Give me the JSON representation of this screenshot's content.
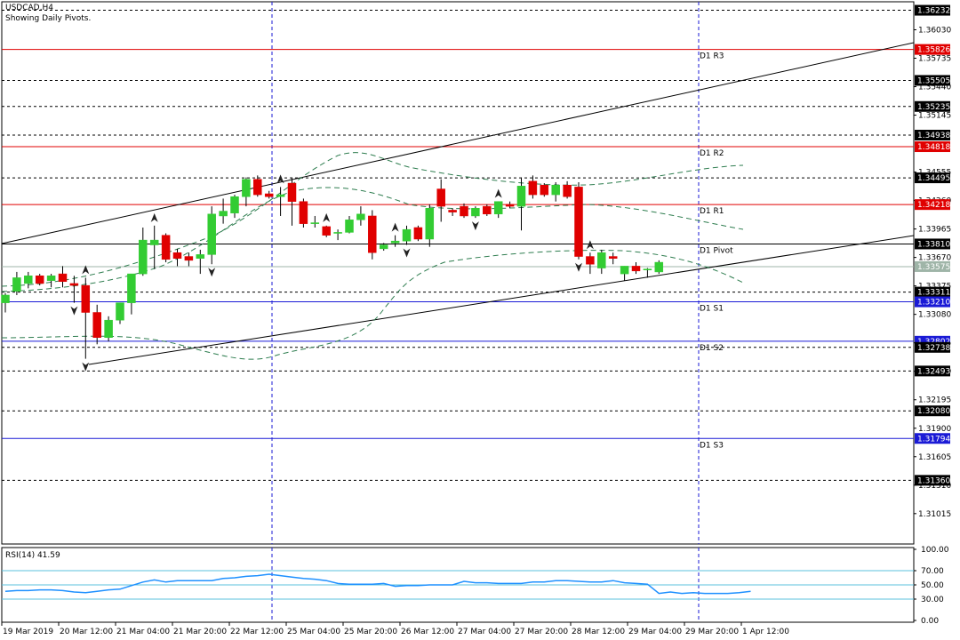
{
  "header": {
    "symbol": "USDCAD,H4",
    "subtitle": "Showing Daily Pivots."
  },
  "rsi": {
    "label": "RSI(14) 41.59",
    "ticks": [
      "100.00",
      "70.00",
      "50.00",
      "30.00",
      "0.00"
    ],
    "values": [
      41,
      42,
      42,
      43,
      43,
      42,
      40,
      39,
      41,
      43,
      44,
      49,
      54,
      57,
      54,
      56,
      56,
      56,
      56,
      59,
      60,
      62,
      63,
      65,
      63,
      61,
      59,
      58,
      56,
      52,
      51,
      51,
      51,
      52,
      48,
      49,
      49,
      50,
      50,
      50,
      55,
      53,
      53,
      52,
      52,
      52,
      54,
      54,
      56,
      56,
      55,
      54,
      54,
      56,
      53,
      52,
      51,
      38,
      40,
      38,
      39,
      38,
      38,
      38,
      39,
      41
    ]
  },
  "price_axis": {
    "plain_labels": [
      "1.36030",
      "1.35735",
      "1.35440",
      "1.35145",
      "1.34555",
      "1.34260",
      "1.33965",
      "1.33670",
      "1.33375",
      "1.33080",
      "1.32785",
      "1.32490",
      "1.32195",
      "1.31900",
      "1.31605",
      "1.31310",
      "1.31015"
    ],
    "boxed_labels": [
      {
        "text": "1.36232",
        "style": "black"
      },
      {
        "text": "1.35826",
        "style": "red"
      },
      {
        "text": "1.35505",
        "style": "black"
      },
      {
        "text": "1.35235",
        "style": "black"
      },
      {
        "text": "1.34938",
        "style": "black"
      },
      {
        "text": "1.34818",
        "style": "red"
      },
      {
        "text": "1.34495",
        "style": "black"
      },
      {
        "text": "1.34218",
        "style": "red"
      },
      {
        "text": "1.33810",
        "style": "black"
      },
      {
        "text": "1.33575",
        "style": "grey"
      },
      {
        "text": "1.33311",
        "style": "black"
      },
      {
        "text": "1.33210",
        "style": "blue"
      },
      {
        "text": "1.32802",
        "style": "blue"
      },
      {
        "text": "1.32738",
        "style": "black"
      },
      {
        "text": "1.32493",
        "style": "black"
      },
      {
        "text": "1.32080",
        "style": "black"
      },
      {
        "text": "1.31794",
        "style": "blue"
      },
      {
        "text": "1.31360",
        "style": "black"
      }
    ]
  },
  "pivot_labels": [
    "D1 R3",
    "D1 R2",
    "D1 R1",
    "D1 Pivot",
    "D1 S1",
    "D1 S2",
    "D1 S3"
  ],
  "time_axis": [
    "19 Mar 2019",
    "20 Mar 12:00",
    "21 Mar 04:00",
    "21 Mar 20:00",
    "22 Mar 12:00",
    "25 Mar 04:00",
    "25 Mar 20:00",
    "26 Mar 12:00",
    "27 Mar 04:00",
    "27 Mar 20:00",
    "28 Mar 12:00",
    "29 Mar 04:00",
    "29 Mar 20:00",
    "1 Apr 12:00"
  ],
  "chart_data": {
    "type": "candlestick",
    "symbol": "USDCAD",
    "timeframe": "H4",
    "ylim": [
      1.307,
      1.3632
    ],
    "grid": "horizontal dashed at key levels; vertical dashed at day separators",
    "pivots": {
      "R3": 1.35826,
      "R2": 1.34818,
      "R1": 1.34218,
      "Pivot": 1.3381,
      "S1": 1.3321,
      "S2": 1.32802,
      "S3": 1.31794
    },
    "level_lines": [
      1.36232,
      1.35505,
      1.35235,
      1.34938,
      1.34495,
      1.33311,
      1.32738,
      1.32493,
      1.3208,
      1.3136
    ],
    "current_price": 1.33575,
    "candles": [
      {
        "o": 1.332,
        "h": 1.333,
        "l": 1.331,
        "c": 1.3328
      },
      {
        "o": 1.3332,
        "h": 1.3352,
        "l": 1.3328,
        "c": 1.3346
      },
      {
        "o": 1.334,
        "h": 1.3352,
        "l": 1.3335,
        "c": 1.3348
      },
      {
        "o": 1.3348,
        "h": 1.335,
        "l": 1.3338,
        "c": 1.334
      },
      {
        "o": 1.3343,
        "h": 1.335,
        "l": 1.3336,
        "c": 1.3348
      },
      {
        "o": 1.335,
        "h": 1.3358,
        "l": 1.3336,
        "c": 1.3342
      },
      {
        "o": 1.334,
        "h": 1.3348,
        "l": 1.332,
        "c": 1.3338
      },
      {
        "o": 1.3338,
        "h": 1.3346,
        "l": 1.3262,
        "c": 1.331
      },
      {
        "o": 1.331,
        "h": 1.3318,
        "l": 1.3277,
        "c": 1.3284
      },
      {
        "o": 1.3284,
        "h": 1.3306,
        "l": 1.328,
        "c": 1.3302
      },
      {
        "o": 1.3302,
        "h": 1.332,
        "l": 1.3298,
        "c": 1.332
      },
      {
        "o": 1.332,
        "h": 1.335,
        "l": 1.3308,
        "c": 1.335
      },
      {
        "o": 1.335,
        "h": 1.3398,
        "l": 1.3348,
        "c": 1.3385
      },
      {
        "o": 1.338,
        "h": 1.34,
        "l": 1.3355,
        "c": 1.3385
      },
      {
        "o": 1.339,
        "h": 1.3392,
        "l": 1.3362,
        "c": 1.3365
      },
      {
        "o": 1.3372,
        "h": 1.3376,
        "l": 1.3358,
        "c": 1.3366
      },
      {
        "o": 1.3368,
        "h": 1.3372,
        "l": 1.3358,
        "c": 1.3364
      },
      {
        "o": 1.3366,
        "h": 1.3375,
        "l": 1.335,
        "c": 1.337
      },
      {
        "o": 1.337,
        "h": 1.342,
        "l": 1.336,
        "c": 1.3412
      },
      {
        "o": 1.341,
        "h": 1.3428,
        "l": 1.3402,
        "c": 1.3415
      },
      {
        "o": 1.3413,
        "h": 1.3432,
        "l": 1.3408,
        "c": 1.343
      },
      {
        "o": 1.343,
        "h": 1.345,
        "l": 1.342,
        "c": 1.3448
      },
      {
        "o": 1.3448,
        "h": 1.3452,
        "l": 1.343,
        "c": 1.3432
      },
      {
        "o": 1.3433,
        "h": 1.3436,
        "l": 1.3428,
        "c": 1.343
      },
      {
        "o": 1.343,
        "h": 1.344,
        "l": 1.341,
        "c": 1.3432
      },
      {
        "o": 1.3444,
        "h": 1.345,
        "l": 1.34,
        "c": 1.3425
      },
      {
        "o": 1.3425,
        "h": 1.3428,
        "l": 1.3398,
        "c": 1.3402
      },
      {
        "o": 1.3402,
        "h": 1.341,
        "l": 1.3398,
        "c": 1.3403
      },
      {
        "o": 1.3399,
        "h": 1.34,
        "l": 1.3388,
        "c": 1.339
      },
      {
        "o": 1.3392,
        "h": 1.3396,
        "l": 1.3385,
        "c": 1.3393
      },
      {
        "o": 1.3393,
        "h": 1.341,
        "l": 1.3392,
        "c": 1.3406
      },
      {
        "o": 1.3406,
        "h": 1.342,
        "l": 1.34,
        "c": 1.3412
      },
      {
        "o": 1.341,
        "h": 1.3416,
        "l": 1.3365,
        "c": 1.3372
      },
      {
        "o": 1.3376,
        "h": 1.3382,
        "l": 1.3374,
        "c": 1.338
      },
      {
        "o": 1.3382,
        "h": 1.339,
        "l": 1.3378,
        "c": 1.3384
      },
      {
        "o": 1.3384,
        "h": 1.34,
        "l": 1.338,
        "c": 1.3396
      },
      {
        "o": 1.3398,
        "h": 1.34,
        "l": 1.3384,
        "c": 1.3386
      },
      {
        "o": 1.3386,
        "h": 1.3422,
        "l": 1.3378,
        "c": 1.3418
      },
      {
        "o": 1.3438,
        "h": 1.3448,
        "l": 1.3404,
        "c": 1.342
      },
      {
        "o": 1.3416,
        "h": 1.3418,
        "l": 1.341,
        "c": 1.3414
      },
      {
        "o": 1.342,
        "h": 1.3423,
        "l": 1.3408,
        "c": 1.341
      },
      {
        "o": 1.341,
        "h": 1.342,
        "l": 1.3408,
        "c": 1.3418
      },
      {
        "o": 1.342,
        "h": 1.3422,
        "l": 1.341,
        "c": 1.3412
      },
      {
        "o": 1.3412,
        "h": 1.3425,
        "l": 1.3408,
        "c": 1.3425
      },
      {
        "o": 1.3422,
        "h": 1.3425,
        "l": 1.3418,
        "c": 1.342
      },
      {
        "o": 1.342,
        "h": 1.345,
        "l": 1.3395,
        "c": 1.3441
      },
      {
        "o": 1.3446,
        "h": 1.3452,
        "l": 1.3428,
        "c": 1.3432
      },
      {
        "o": 1.3442,
        "h": 1.3444,
        "l": 1.343,
        "c": 1.3432
      },
      {
        "o": 1.3432,
        "h": 1.3445,
        "l": 1.3425,
        "c": 1.3442
      },
      {
        "o": 1.3442,
        "h": 1.3446,
        "l": 1.3428,
        "c": 1.343
      },
      {
        "o": 1.344,
        "h": 1.3445,
        "l": 1.3365,
        "c": 1.3368
      },
      {
        "o": 1.3368,
        "h": 1.3372,
        "l": 1.335,
        "c": 1.336
      },
      {
        "o": 1.3356,
        "h": 1.3375,
        "l": 1.335,
        "c": 1.3372
      },
      {
        "o": 1.3368,
        "h": 1.3372,
        "l": 1.336,
        "c": 1.3366
      },
      {
        "o": 1.335,
        "h": 1.3358,
        "l": 1.3343,
        "c": 1.3358
      },
      {
        "o": 1.3358,
        "h": 1.3362,
        "l": 1.335,
        "c": 1.3353
      },
      {
        "o": 1.3354,
        "h": 1.3356,
        "l": 1.3346,
        "c": 1.3355
      },
      {
        "o": 1.3352,
        "h": 1.3364,
        "l": 1.335,
        "c": 1.3362
      }
    ]
  }
}
